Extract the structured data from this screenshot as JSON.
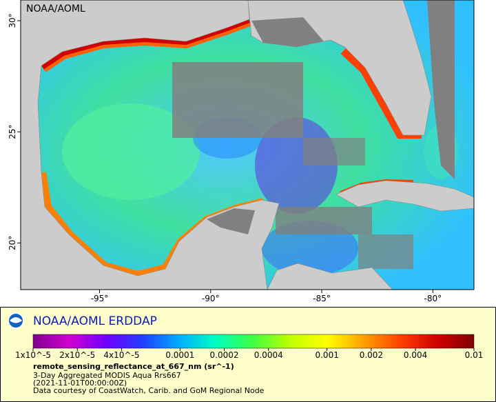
{
  "chart_data": {
    "type": "map",
    "watermark": "NOAA/AOML",
    "xlim": [
      -98.55,
      -78.15
    ],
    "ylim": [
      17.9,
      30.93
    ],
    "xticks": [
      {
        "value": -95,
        "label": "-95°"
      },
      {
        "value": -90,
        "label": "-90°"
      },
      {
        "value": -85,
        "label": "-85°"
      },
      {
        "value": -80,
        "label": "-80°"
      }
    ],
    "yticks": [
      {
        "value": 20,
        "label": "20°"
      },
      {
        "value": 25,
        "label": "25°"
      },
      {
        "value": 30,
        "label": "30°"
      }
    ],
    "colorbar": {
      "scale": "log",
      "lim": [
        1e-05,
        0.01
      ],
      "colors": [
        "#800090",
        "#d000d0",
        "#7000ff",
        "#2040ff",
        "#00b0ff",
        "#00ffc0",
        "#40ff40",
        "#c0ff00",
        "#ffff00",
        "#ffa000",
        "#ff4000",
        "#d00000",
        "#800000"
      ],
      "ticks": [
        {
          "value": 1e-05,
          "label": "1x10^-5"
        },
        {
          "value": 2e-05,
          "label": "2x10^-5"
        },
        {
          "value": 4e-05,
          "label": "4x10^-5"
        },
        {
          "value": 0.0001,
          "label": "0.0001"
        },
        {
          "value": 0.0002,
          "label": "0.0002"
        },
        {
          "value": 0.0004,
          "label": "0.0004"
        },
        {
          "value": 0.001,
          "label": "0.001"
        },
        {
          "value": 0.002,
          "label": "0.002"
        },
        {
          "value": 0.004,
          "label": "0.004"
        },
        {
          "value": 0.01,
          "label": "0.01"
        }
      ]
    }
  },
  "legend": {
    "title": "NOAA/AOML ERDDAP",
    "variable": "remote_sensing_reflectance_at_667_nm (sr^-1)",
    "lines": [
      "3-Day Aggregated MODIS Aqua Rrs667",
      "(2021-11-01T00:00:00Z)",
      "Data courtesy of CoastWatch, Carib. and GoM Regional Node"
    ]
  }
}
